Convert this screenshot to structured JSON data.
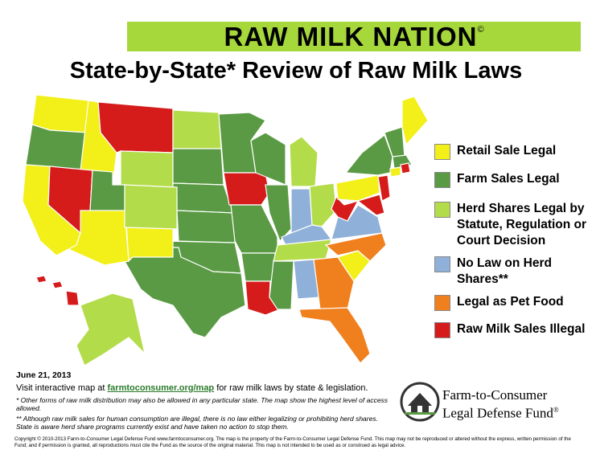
{
  "header": {
    "title": "RAW MILK NATION",
    "mark": "©",
    "subtitle": "State-by-State* Review of Raw Milk Laws"
  },
  "legend": [
    {
      "label": "Retail Sale Legal",
      "color": "#f2ef19"
    },
    {
      "label": "Farm Sales Legal",
      "color": "#5a9a44"
    },
    {
      "label": "Herd Shares Legal by Statute, Regulation or Court Decision",
      "color": "#b3dc4a"
    },
    {
      "label": "No Law on Herd Shares**",
      "color": "#8fb0d8"
    },
    {
      "label": "Legal as Pet Food",
      "color": "#f07f1e"
    },
    {
      "label": "Raw Milk Sales Illegal",
      "color": "#d61b1b"
    }
  ],
  "footer": {
    "date": "June 21, 2013",
    "visit": {
      "before": "Visit interactive map at ",
      "link": "farmtoconsumer.org/map",
      "after": " for raw milk laws by state & legislation."
    },
    "notes": [
      "*  Other forms of raw milk distribution may also be allowed in any particular state. The map show the highest level of access allowed.",
      "** Although raw milk sales for human consumption are illegal, there is no law either legalizing or prohibiting herd shares. State is aware herd share programs currently exist and have taken no action to stop them."
    ],
    "copyright": "Copyright © 2010-2013 Farm-to-Consumer Legal Defense Fund www.farmtoconsumer.org. The map is the property of the Farm-to-Consumer Legal Defense Fund. This map may not be reproduced or altered without the express, written permission of the Fund; and if permission is granted, all reproductions must cite the Fund as the source of the original material. This map is not intended to be used as or construed as legal advice."
  },
  "logo": {
    "line1": "Farm-to-Consumer",
    "line2": "Legal Defense Fund",
    "mark": "®"
  }
}
